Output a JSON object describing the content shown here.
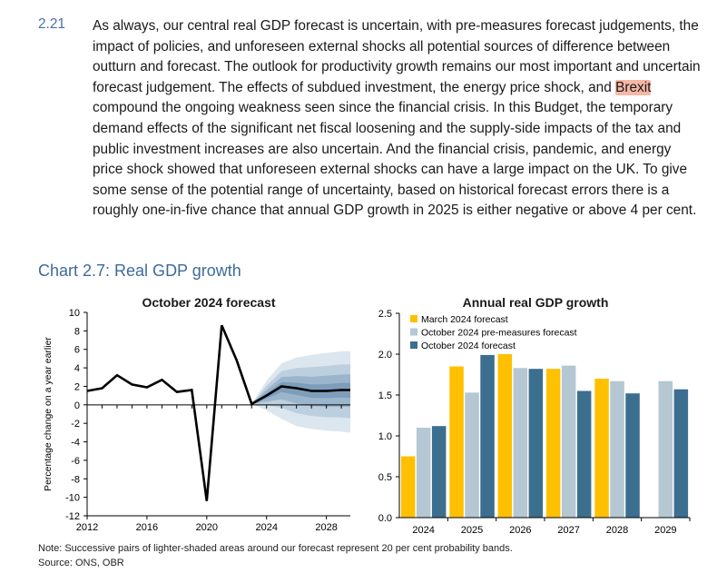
{
  "paragraph": {
    "number": "2.21",
    "before_highlight": "As always, our central real GDP forecast is uncertain, with pre-measures forecast judgements, the impact of policies, and unforeseen external shocks all potential sources of difference between outturn and forecast. The outlook for productivity growth remains our most important and uncertain forecast judgement. The effects of subdued investment, the energy price shock, and ",
    "highlight": "Brexit",
    "after_highlight": " compound the ongoing weakness seen since the financial crisis. In this Budget, the temporary demand effects of the significant net fiscal loosening and the supply-side impacts of the tax and public investment increases are also uncertain. And the financial crisis, pandemic, and energy price shock showed that unforeseen external shocks can have a large impact on the UK. To give some sense of the potential range of uncertainty, based on historical forecast errors there is a roughly one-in-five chance that annual GDP growth in 2025 is either negative or above 4 per cent."
  },
  "chart_heading": "Chart 2.7: Real GDP growth",
  "colors": {
    "heading": "#3d6b9a",
    "march": "#ffc000",
    "oct_pre": "#b4c7d3",
    "oct": "#3c6e8f",
    "fan_bands": [
      "#dce6ef",
      "#bccfdf",
      "#9ab5cc",
      "#7d9dbb"
    ]
  },
  "chart_data": [
    {
      "type": "line",
      "title": "October 2024 forecast",
      "ylabel": "Percentage change on a year earlier",
      "xlim": [
        2012,
        2029.6
      ],
      "ylim": [
        -12,
        10
      ],
      "yticks": [
        -12,
        -10,
        -8,
        -6,
        -4,
        -2,
        0,
        2,
        4,
        6,
        8,
        10
      ],
      "xticks": [
        2012,
        2016,
        2020,
        2024,
        2028
      ],
      "series": [
        {
          "values": [
            [
              2012,
              1.5
            ],
            [
              2013,
              1.8
            ],
            [
              2014,
              3.2
            ],
            [
              2015,
              2.2
            ],
            [
              2016,
              1.9
            ],
            [
              2017,
              2.7
            ],
            [
              2018,
              1.4
            ],
            [
              2019,
              1.6
            ],
            [
              2020,
              -10.4
            ],
            [
              2021,
              8.6
            ],
            [
              2022,
              4.8
            ],
            [
              2023,
              0.1
            ],
            [
              2024,
              1.0
            ],
            [
              2025,
              2.0
            ],
            [
              2026,
              1.8
            ],
            [
              2027,
              1.5
            ],
            [
              2028,
              1.5
            ],
            [
              2029,
              1.6
            ],
            [
              2029.6,
              1.6
            ]
          ]
        }
      ],
      "fan_bands": {
        "x": [
          2023,
          2024,
          2025,
          2026,
          2027,
          2028,
          2029,
          2029.6
        ],
        "outer_upper": [
          0.1,
          2.6,
          4.5,
          5.1,
          5.4,
          5.6,
          5.8,
          5.8
        ],
        "outer_lower": [
          0.1,
          -0.6,
          -1.5,
          -2.3,
          -2.6,
          -2.8,
          -2.9,
          -3.0
        ]
      },
      "grid": false
    },
    {
      "type": "bar",
      "title": "Annual real GDP growth",
      "categories": [
        "2024",
        "2025",
        "2026",
        "2027",
        "2028",
        "2029"
      ],
      "ylim": [
        0,
        2.5
      ],
      "yticks": [
        "0.0",
        "0.5",
        "1.0",
        "1.5",
        "2.0",
        "2.5"
      ],
      "legend_position": "top-left",
      "series": [
        {
          "name": "March 2024 forecast",
          "values": [
            0.75,
            1.85,
            2.0,
            1.82,
            1.7,
            null
          ]
        },
        {
          "name": "October 2024 pre-measures forecast",
          "values": [
            1.1,
            1.53,
            1.83,
            1.86,
            1.67,
            1.67
          ]
        },
        {
          "name": "October 2024 forecast",
          "values": [
            1.12,
            1.99,
            1.82,
            1.55,
            1.52,
            1.57
          ]
        }
      ],
      "grid": false
    }
  ],
  "footer": {
    "note": "Note: Successive pairs of lighter-shaded areas around our forecast represent 20 per cent probability bands.",
    "source": "Source: ONS, OBR"
  }
}
